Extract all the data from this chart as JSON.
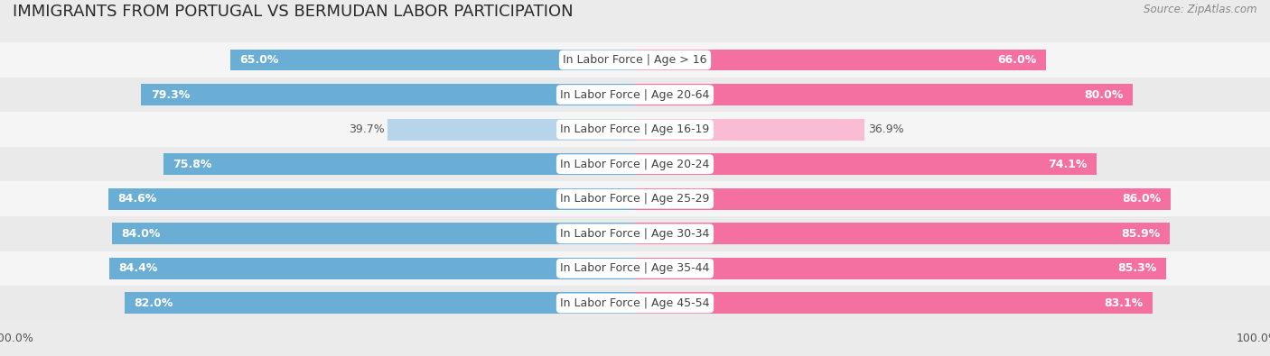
{
  "title": "IMMIGRANTS FROM PORTUGAL VS BERMUDAN LABOR PARTICIPATION",
  "source": "Source: ZipAtlas.com",
  "categories": [
    "In Labor Force | Age > 16",
    "In Labor Force | Age 20-64",
    "In Labor Force | Age 16-19",
    "In Labor Force | Age 20-24",
    "In Labor Force | Age 25-29",
    "In Labor Force | Age 30-34",
    "In Labor Force | Age 35-44",
    "In Labor Force | Age 45-54"
  ],
  "portugal_values": [
    65.0,
    79.3,
    39.7,
    75.8,
    84.6,
    84.0,
    84.4,
    82.0
  ],
  "bermudan_values": [
    66.0,
    80.0,
    36.9,
    74.1,
    86.0,
    85.9,
    85.3,
    83.1
  ],
  "portugal_color": "#6aadd5",
  "portugal_light_color": "#b8d4ea",
  "bermudan_color": "#f470a0",
  "bermudan_light_color": "#f9bcd4",
  "background_color": "#ebebeb",
  "row_bg_even": "#f5f5f5",
  "row_bg_odd": "#e8e8e8",
  "max_value": 100.0,
  "bar_height": 0.62,
  "title_fontsize": 13,
  "label_fontsize": 9,
  "value_fontsize": 9,
  "tick_fontsize": 9,
  "legend_fontsize": 9.5,
  "light_threshold": 50
}
